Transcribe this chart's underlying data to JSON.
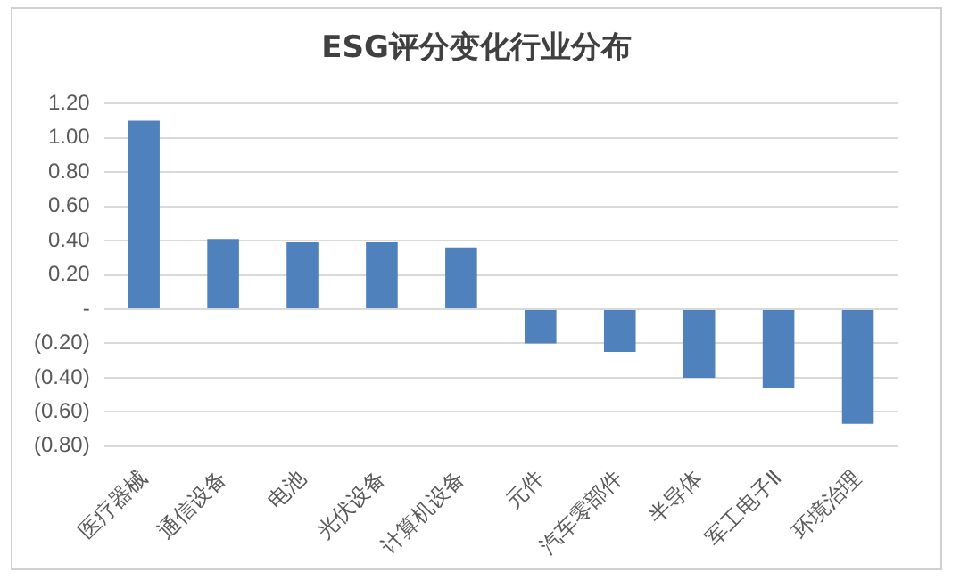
{
  "chart_data": {
    "type": "bar",
    "title": "ESG评分变化行业分布",
    "categories": [
      "医疗器械",
      "通信设备",
      "电池",
      "光伏设备",
      "计算机设备",
      "元件",
      "汽车零部件",
      "半导体",
      "军工电子Ⅱ",
      "环境治理"
    ],
    "values": [
      1.1,
      0.41,
      0.39,
      0.39,
      0.36,
      -0.2,
      -0.25,
      -0.4,
      -0.46,
      -0.67
    ],
    "color": "#4f81bd",
    "ylim": [
      -0.8,
      1.2
    ],
    "yticks": [
      {
        "value": -0.8,
        "label": "(0.80)"
      },
      {
        "value": -0.6,
        "label": "(0.60)"
      },
      {
        "value": -0.4,
        "label": "(0.40)"
      },
      {
        "value": -0.2,
        "label": "(0.20)"
      },
      {
        "value": 0,
        "label": "-"
      },
      {
        "value": 0.2,
        "label": "0.20"
      },
      {
        "value": 0.4,
        "label": "0.40"
      },
      {
        "value": 0.6,
        "label": "0.60"
      },
      {
        "value": 0.8,
        "label": "0.80"
      },
      {
        "value": 1.0,
        "label": "1.00"
      },
      {
        "value": 1.2,
        "label": "1.20"
      }
    ],
    "grid": "y",
    "legend": false
  }
}
